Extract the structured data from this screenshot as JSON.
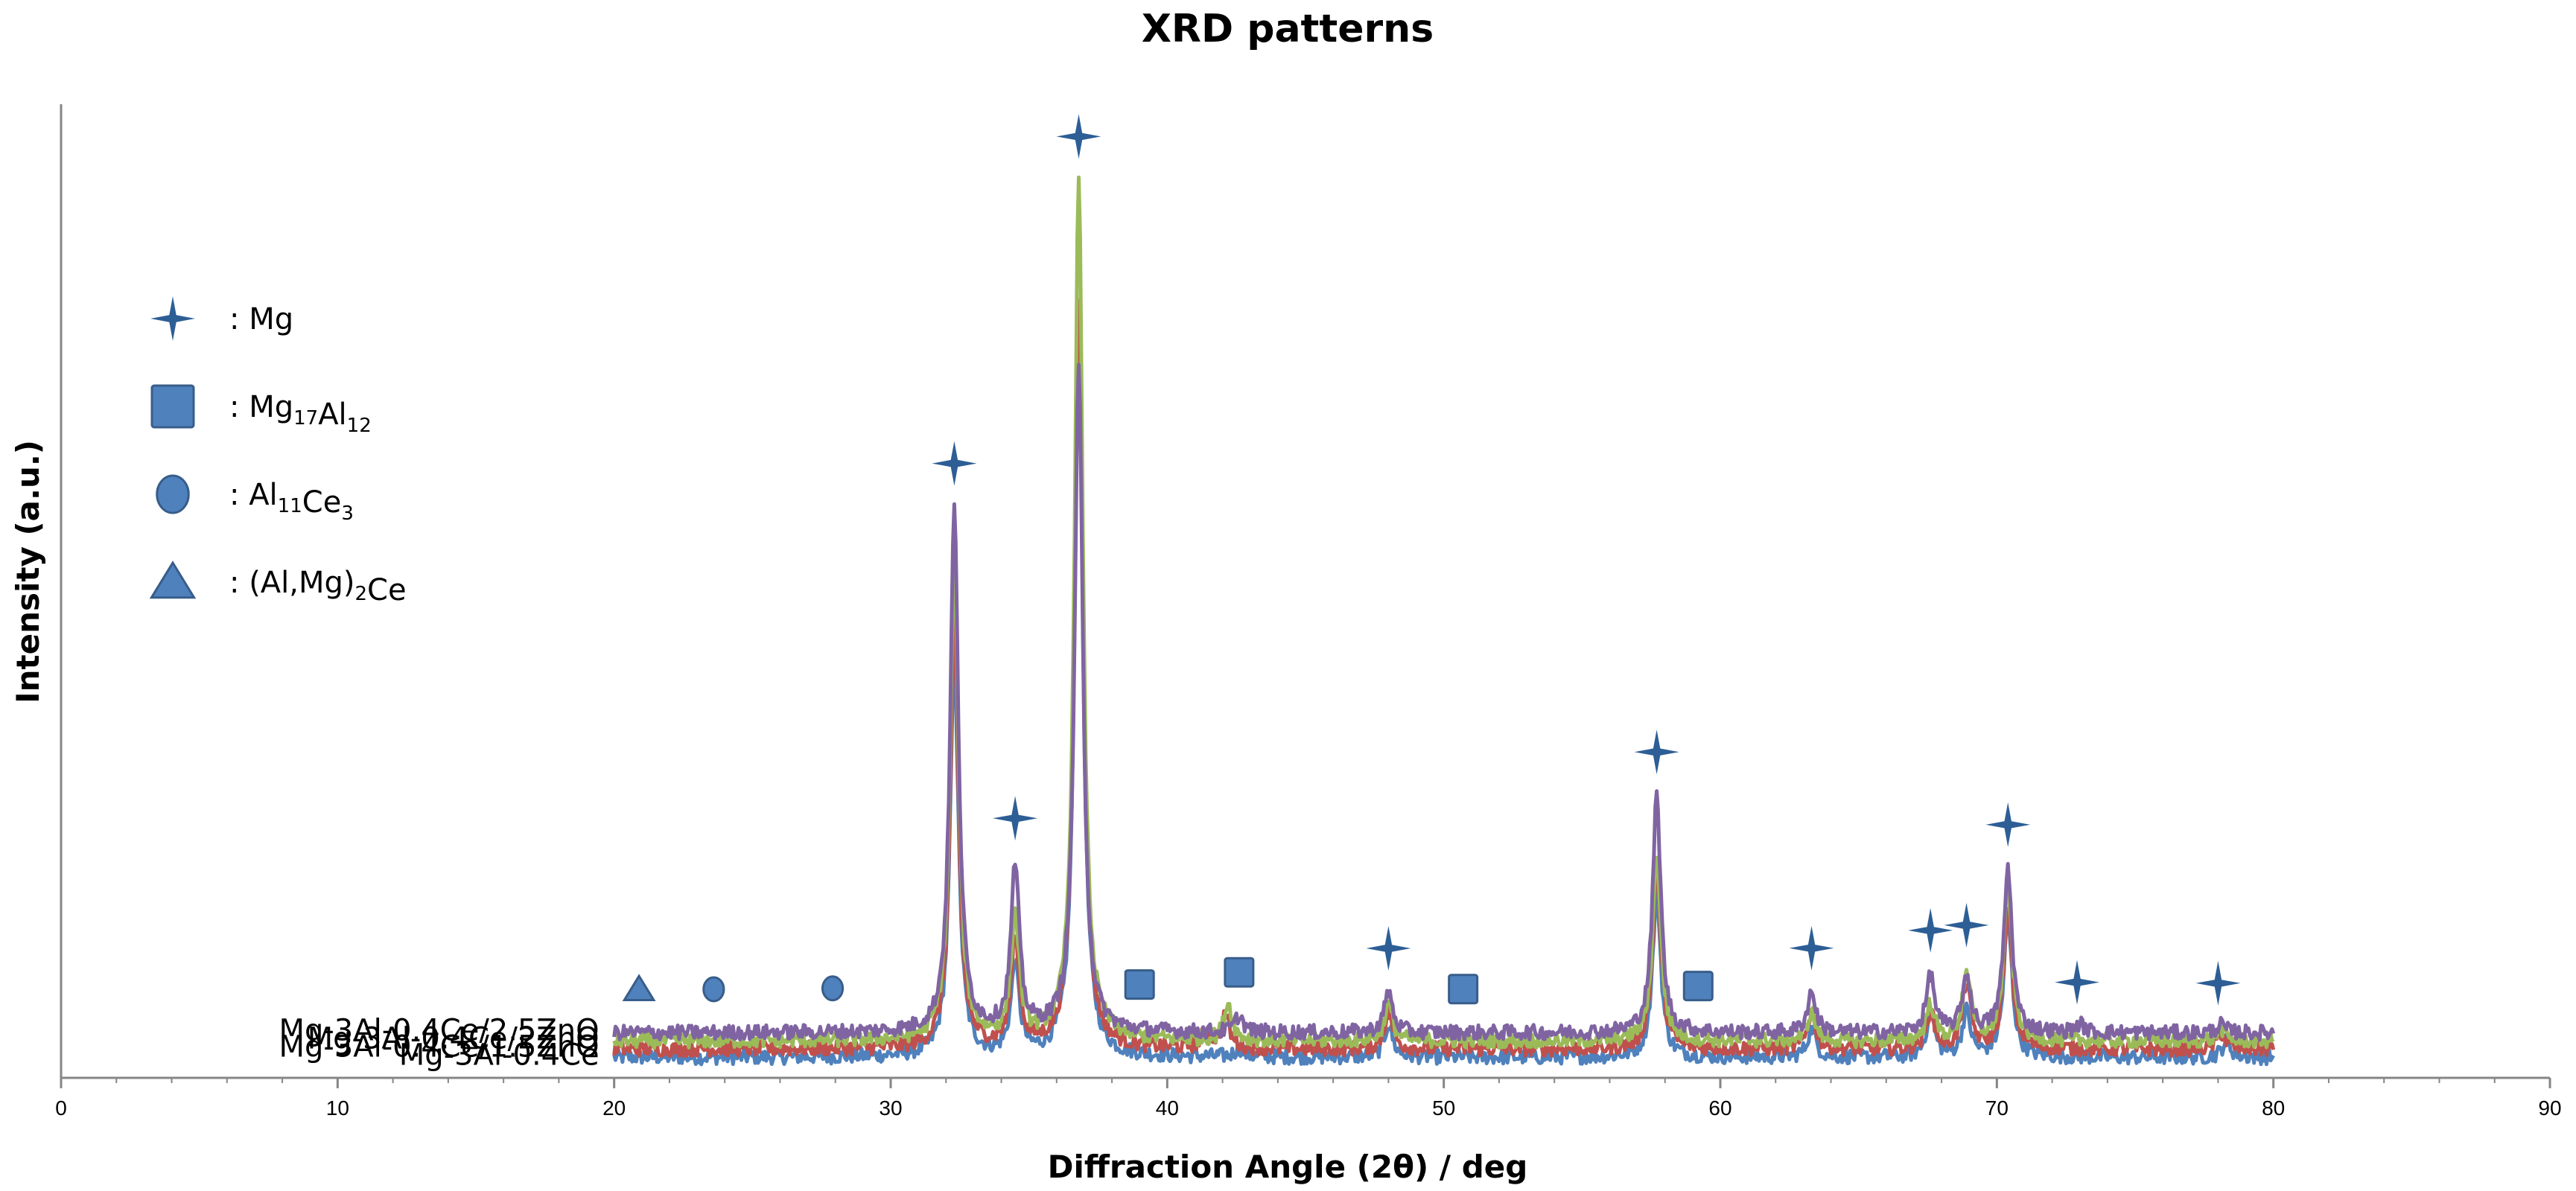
{
  "chart_data": {
    "type": "line",
    "title": "XRD patterns",
    "xlabel": "Diffraction Angle (2θ) / deg",
    "ylabel": "Intensity (a.u.)",
    "xlim": [
      0,
      90
    ],
    "xticks": [
      0,
      10,
      20,
      30,
      40,
      50,
      60,
      70,
      80,
      90
    ],
    "y_ticks_shown": false,
    "grid": false,
    "x_range_of_data": [
      20,
      80
    ],
    "peaks": [
      {
        "x": 20.9,
        "phase": "(Al,Mg)2Ce",
        "marker": "triangle"
      },
      {
        "x": 23.6,
        "phase": "Al11Ce3",
        "marker": "circle"
      },
      {
        "x": 27.9,
        "phase": "Al11Ce3",
        "marker": "circle"
      },
      {
        "x": 32.3,
        "phase": "Mg",
        "marker": "star"
      },
      {
        "x": 34.5,
        "phase": "Mg",
        "marker": "star"
      },
      {
        "x": 36.8,
        "phase": "Mg",
        "marker": "star"
      },
      {
        "x": 39.0,
        "phase": "Mg17Al12",
        "marker": "square"
      },
      {
        "x": 42.6,
        "phase": "Mg17Al12",
        "marker": "square"
      },
      {
        "x": 48.0,
        "phase": "Mg",
        "marker": "star"
      },
      {
        "x": 50.7,
        "phase": "Mg17Al12",
        "marker": "square"
      },
      {
        "x": 57.7,
        "phase": "Mg",
        "marker": "star"
      },
      {
        "x": 59.2,
        "phase": "Mg17Al12",
        "marker": "square"
      },
      {
        "x": 63.3,
        "phase": "Mg",
        "marker": "star"
      },
      {
        "x": 67.6,
        "phase": "Mg",
        "marker": "star"
      },
      {
        "x": 68.9,
        "phase": "Mg",
        "marker": "star"
      },
      {
        "x": 70.4,
        "phase": "Mg",
        "marker": "star"
      },
      {
        "x": 72.9,
        "phase": "Mg",
        "marker": "star"
      },
      {
        "x": 78.0,
        "phase": "Mg",
        "marker": "star"
      }
    ],
    "series": [
      {
        "name": "Mg-3Al-0.4Ce/2.5ZnO",
        "color": "#8064A2",
        "baseline": 0.25,
        "peaks": [
          [
            32.3,
            6.4
          ],
          [
            34.5,
            2.0
          ],
          [
            36.8,
            8.1
          ],
          [
            42.6,
            0.2
          ],
          [
            48.0,
            0.5
          ],
          [
            57.7,
            2.9
          ],
          [
            63.3,
            0.5
          ],
          [
            67.6,
            0.7
          ],
          [
            68.9,
            0.7
          ],
          [
            70.4,
            2.0
          ],
          [
            73.0,
            0.1
          ],
          [
            78.1,
            0.1
          ]
        ]
      },
      {
        "name": "Mg-3Al-0.4Ce/2ZnO",
        "color": "#9BBB59",
        "baseline": 0.15,
        "peaks": [
          [
            32.3,
            5.9
          ],
          [
            34.5,
            1.5
          ],
          [
            36.8,
            10.5
          ],
          [
            42.2,
            0.45
          ],
          [
            48.0,
            0.45
          ],
          [
            57.7,
            2.3
          ],
          [
            63.3,
            0.35
          ],
          [
            67.6,
            0.45
          ],
          [
            68.9,
            0.85
          ],
          [
            70.4,
            1.9
          ],
          [
            78.1,
            0.15
          ]
        ]
      },
      {
        "name": "Mg-3Al-0.4Ce/1.5ZnO",
        "color": "#C0504D",
        "baseline": 0.05,
        "peaks": [
          [
            32.3,
            5.2
          ],
          [
            34.5,
            1.3
          ],
          [
            36.8,
            9.2
          ],
          [
            41.4,
            0.2
          ],
          [
            42.1,
            0.4
          ],
          [
            48.0,
            0.45
          ],
          [
            57.7,
            2.2
          ],
          [
            63.3,
            0.45
          ],
          [
            67.6,
            0.45
          ],
          [
            68.9,
            0.8
          ],
          [
            70.4,
            1.7
          ],
          [
            78.1,
            0.2
          ]
        ]
      },
      {
        "name": "Mg-3Al-0.4Ce",
        "color": "#4F81BD",
        "baseline": -0.05,
        "peaks": [
          [
            32.3,
            4.9
          ],
          [
            34.5,
            1.1
          ],
          [
            36.8,
            8.9
          ],
          [
            42.6,
            0.1
          ],
          [
            48.0,
            0.4
          ],
          [
            57.7,
            2.0
          ],
          [
            63.3,
            0.35
          ],
          [
            67.6,
            0.55
          ],
          [
            68.9,
            0.55
          ],
          [
            70.4,
            1.7
          ],
          [
            78.3,
            0.2
          ]
        ]
      }
    ],
    "legend": [
      {
        "marker": "star",
        "label": ": Mg",
        "parts": [
          ": Mg"
        ],
        "subs": []
      },
      {
        "marker": "square",
        "label": ": Mg17Al12",
        "parts": [
          ": Mg",
          "Al",
          ""
        ],
        "subs": [
          "17",
          "12"
        ]
      },
      {
        "marker": "circle",
        "label": ": Al11Ce3",
        "parts": [
          ": Al",
          "Ce",
          ""
        ],
        "subs": [
          "11",
          "3"
        ]
      },
      {
        "marker": "triangle",
        "label": ": (Al,Mg)2Ce",
        "parts": [
          ": (Al,Mg)",
          "Ce"
        ],
        "subs": [
          "2"
        ]
      }
    ],
    "marker_color": "#4F81BD",
    "marker_star_color": "#2D5E95"
  }
}
